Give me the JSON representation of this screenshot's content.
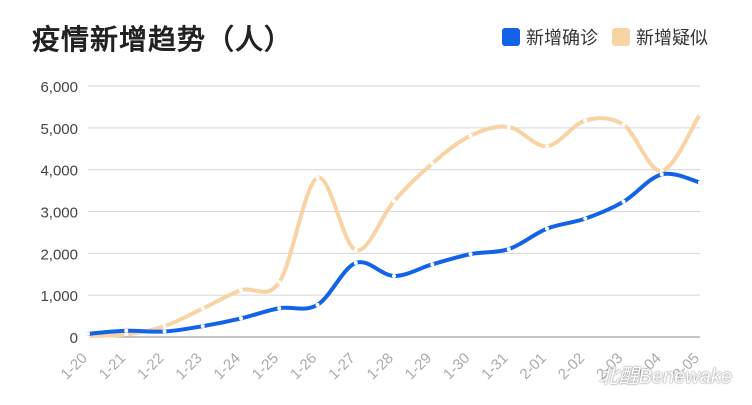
{
  "chart_data": {
    "type": "line",
    "title": "疫情新增趋势（人）",
    "categories": [
      "1-20",
      "1-21",
      "1-22",
      "1-23",
      "1-24",
      "1-25",
      "1-26",
      "1-27",
      "1-28",
      "1-29",
      "1-30",
      "1-31",
      "2-01",
      "2-02",
      "2-03",
      "2-04",
      "2-05"
    ],
    "series": [
      {
        "name": "新增确诊",
        "color": "#1363e8",
        "values": [
          77,
          149,
          131,
          259,
          444,
          688,
          769,
          1771,
          1459,
          1737,
          1981,
          2102,
          2590,
          2829,
          3235,
          3887,
          3694
        ]
      },
      {
        "name": "新增疑似",
        "color": "#f8d3a4",
        "values": [
          27,
          60,
          257,
          680,
          1118,
          1309,
          3806,
          2077,
          3248,
          4148,
          4812,
          5019,
          4562,
          5173,
          5072,
          3971,
          5328
        ]
      }
    ],
    "ylim": [
      0,
      6000
    ],
    "yticks": [
      "0",
      "1,000",
      "2,000",
      "3,000",
      "4,000",
      "5,000",
      "6,000"
    ],
    "grid": true,
    "legend": "top-right"
  },
  "watermark": "北醒Benewake"
}
